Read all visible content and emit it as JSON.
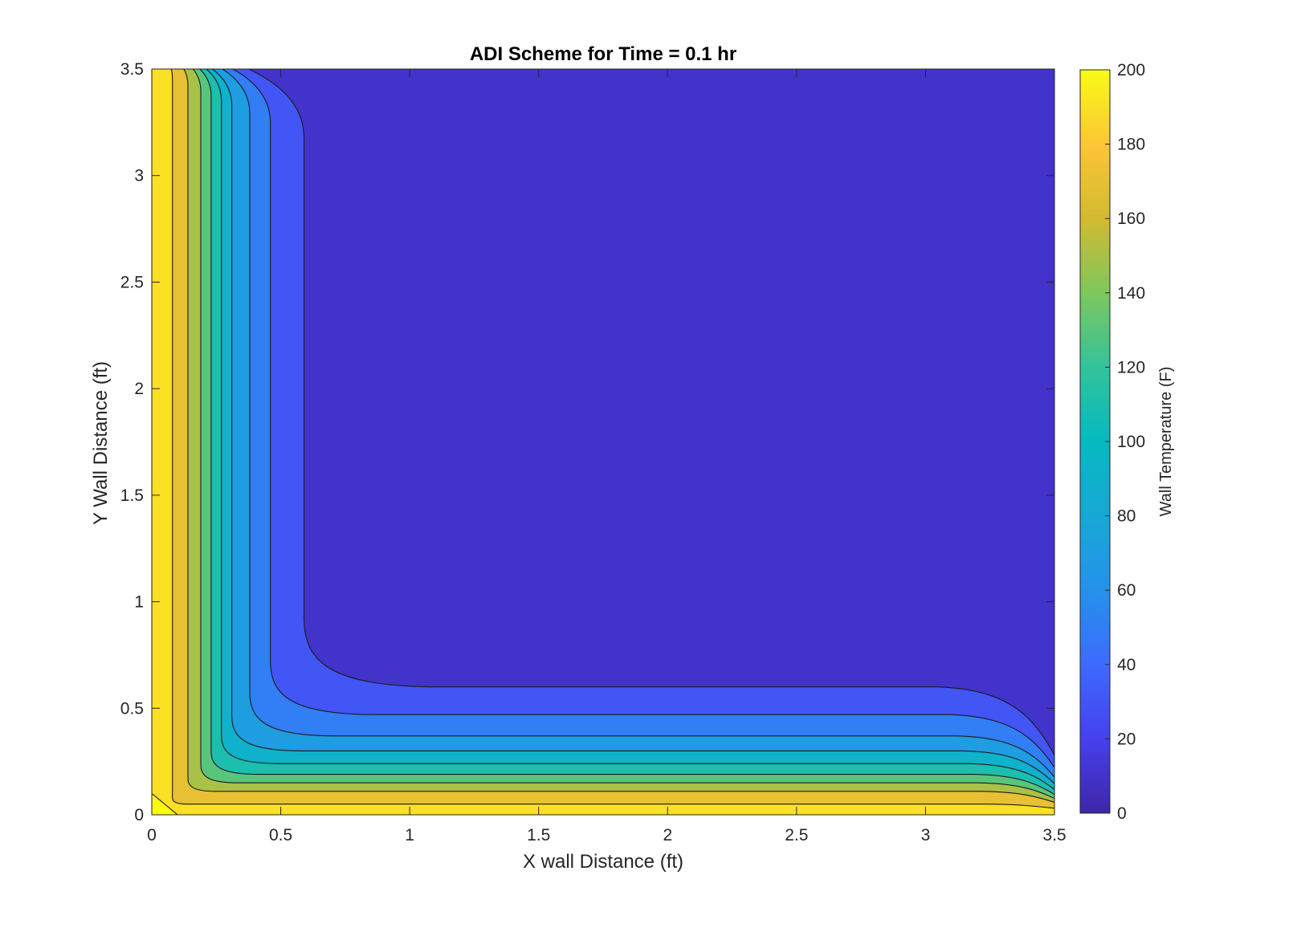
{
  "chart_data": {
    "type": "contour",
    "title": "ADI Scheme for Time = 0.1 hr",
    "xlabel": "X wall Distance (ft)",
    "ylabel": "Y Wall Distance (ft)",
    "xlim": [
      0,
      3.5
    ],
    "ylim": [
      0,
      3.5
    ],
    "xticks": [
      "0",
      "0.5",
      "1",
      "1.5",
      "2",
      "2.5",
      "3",
      "3.5"
    ],
    "yticks": [
      "0",
      "0.5",
      "1",
      "1.5",
      "2",
      "2.5",
      "3",
      "3.5"
    ],
    "colorbar": {
      "label": "Wall Temperature (F)",
      "range": [
        0,
        200
      ],
      "ticks": [
        "0",
        "20",
        "40",
        "60",
        "80",
        "100",
        "120",
        "140",
        "160",
        "180",
        "200"
      ],
      "colormap": "parula"
    },
    "contour_levels": [
      0,
      20,
      40,
      60,
      80,
      100,
      120,
      140,
      160,
      180,
      200
    ],
    "boundary_conditions": {
      "left_wall_F": 180,
      "bottom_wall_F": 180,
      "corner_F": 200,
      "interior_F": 0
    },
    "contour_band_edges": [
      {
        "level": 20,
        "x_edge": 0.59,
        "y_edge": 0.6
      },
      {
        "level": 40,
        "x_edge": 0.46,
        "y_edge": 0.47
      },
      {
        "level": 60,
        "x_edge": 0.38,
        "y_edge": 0.37
      },
      {
        "level": 80,
        "x_edge": 0.31,
        "y_edge": 0.3
      },
      {
        "level": 100,
        "x_edge": 0.27,
        "y_edge": 0.24
      },
      {
        "level": 120,
        "x_edge": 0.23,
        "y_edge": 0.19
      },
      {
        "level": 140,
        "x_edge": 0.19,
        "y_edge": 0.15
      },
      {
        "level": 160,
        "x_edge": 0.14,
        "y_edge": 0.11
      },
      {
        "level": 180,
        "x_edge": 0.08,
        "y_edge": 0.05
      }
    ]
  }
}
